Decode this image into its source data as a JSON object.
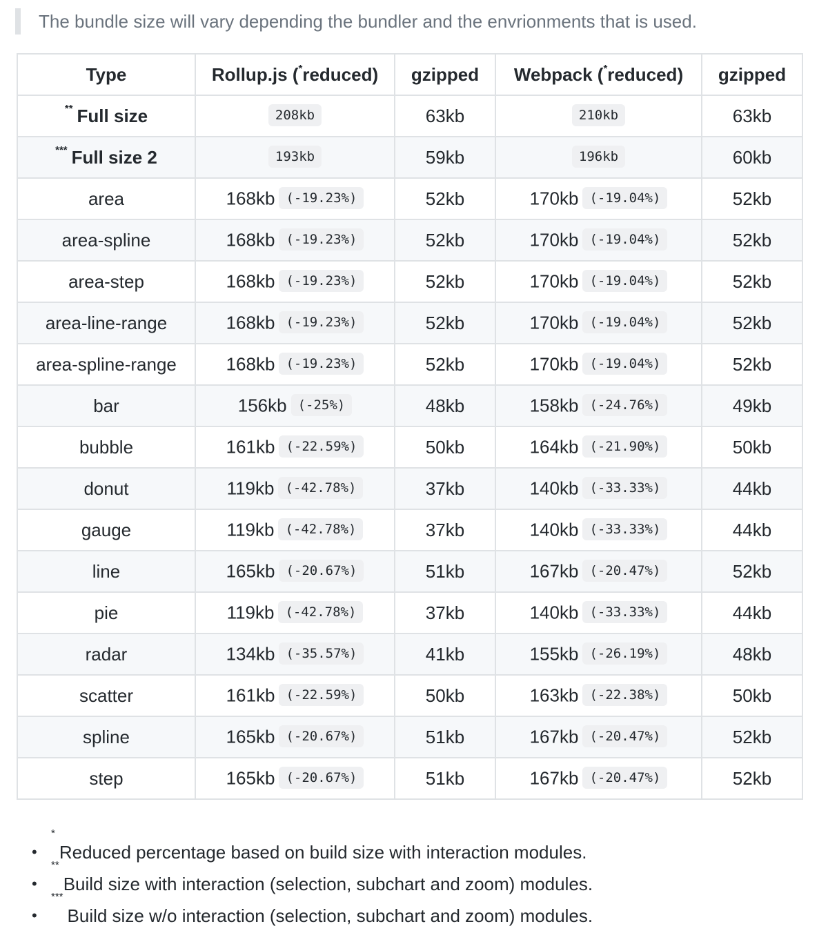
{
  "intro": "The bundle size will vary depending the bundler and the envrionments that is used.",
  "table": {
    "headers": {
      "type": "Type",
      "rollup_pre": "Rollup.js (",
      "rollup_mark": "*",
      "rollup_post": "reduced)",
      "gzip1": "gzipped",
      "webpack_pre": "Webpack (",
      "webpack_mark": "*",
      "webpack_post": "reduced)",
      "gzip2": "gzipped"
    },
    "rows": [
      {
        "mark": "**",
        "type": "Full size",
        "rollup": "",
        "rollup_code": "208kb",
        "gz1": "63kb",
        "webpack": "",
        "webpack_code": "210kb",
        "gz2": "63kb",
        "bold": true
      },
      {
        "mark": "***",
        "type": "Full size 2",
        "rollup": "",
        "rollup_code": "193kb",
        "gz1": "59kb",
        "webpack": "",
        "webpack_code": "196kb",
        "gz2": "60kb",
        "bold": true
      },
      {
        "mark": "",
        "type": "area",
        "rollup": "168kb",
        "rollup_code": "(-19.23%)",
        "gz1": "52kb",
        "webpack": "170kb",
        "webpack_code": "(-19.04%)",
        "gz2": "52kb"
      },
      {
        "mark": "",
        "type": "area-spline",
        "rollup": "168kb",
        "rollup_code": "(-19.23%)",
        "gz1": "52kb",
        "webpack": "170kb",
        "webpack_code": "(-19.04%)",
        "gz2": "52kb"
      },
      {
        "mark": "",
        "type": "area-step",
        "rollup": "168kb",
        "rollup_code": "(-19.23%)",
        "gz1": "52kb",
        "webpack": "170kb",
        "webpack_code": "(-19.04%)",
        "gz2": "52kb"
      },
      {
        "mark": "",
        "type": "area-line-range",
        "rollup": "168kb",
        "rollup_code": "(-19.23%)",
        "gz1": "52kb",
        "webpack": "170kb",
        "webpack_code": "(-19.04%)",
        "gz2": "52kb"
      },
      {
        "mark": "",
        "type": "area-spline-range",
        "rollup": "168kb",
        "rollup_code": "(-19.23%)",
        "gz1": "52kb",
        "webpack": "170kb",
        "webpack_code": "(-19.04%)",
        "gz2": "52kb"
      },
      {
        "mark": "",
        "type": "bar",
        "rollup": "156kb",
        "rollup_code": "(-25%)",
        "gz1": "48kb",
        "webpack": "158kb",
        "webpack_code": "(-24.76%)",
        "gz2": "49kb"
      },
      {
        "mark": "",
        "type": "bubble",
        "rollup": "161kb",
        "rollup_code": "(-22.59%)",
        "gz1": "50kb",
        "webpack": "164kb",
        "webpack_code": "(-21.90%)",
        "gz2": "50kb"
      },
      {
        "mark": "",
        "type": "donut",
        "rollup": "119kb",
        "rollup_code": "(-42.78%)",
        "gz1": "37kb",
        "webpack": "140kb",
        "webpack_code": "(-33.33%)",
        "gz2": "44kb"
      },
      {
        "mark": "",
        "type": "gauge",
        "rollup": "119kb",
        "rollup_code": "(-42.78%)",
        "gz1": "37kb",
        "webpack": "140kb",
        "webpack_code": "(-33.33%)",
        "gz2": "44kb"
      },
      {
        "mark": "",
        "type": "line",
        "rollup": "165kb",
        "rollup_code": "(-20.67%)",
        "gz1": "51kb",
        "webpack": "167kb",
        "webpack_code": "(-20.47%)",
        "gz2": "52kb"
      },
      {
        "mark": "",
        "type": "pie",
        "rollup": "119kb",
        "rollup_code": "(-42.78%)",
        "gz1": "37kb",
        "webpack": "140kb",
        "webpack_code": "(-33.33%)",
        "gz2": "44kb"
      },
      {
        "mark": "",
        "type": "radar",
        "rollup": "134kb",
        "rollup_code": "(-35.57%)",
        "gz1": "41kb",
        "webpack": "155kb",
        "webpack_code": "(-26.19%)",
        "gz2": "48kb"
      },
      {
        "mark": "",
        "type": "scatter",
        "rollup": "161kb",
        "rollup_code": "(-22.59%)",
        "gz1": "50kb",
        "webpack": "163kb",
        "webpack_code": "(-22.38%)",
        "gz2": "50kb"
      },
      {
        "mark": "",
        "type": "spline",
        "rollup": "165kb",
        "rollup_code": "(-20.67%)",
        "gz1": "51kb",
        "webpack": "167kb",
        "webpack_code": "(-20.47%)",
        "gz2": "52kb"
      },
      {
        "mark": "",
        "type": "step",
        "rollup": "165kb",
        "rollup_code": "(-20.67%)",
        "gz1": "51kb",
        "webpack": "167kb",
        "webpack_code": "(-20.47%)",
        "gz2": "52kb"
      }
    ]
  },
  "notes": [
    {
      "mark": "*",
      "text": "Reduced percentage based on build size with interaction modules."
    },
    {
      "mark": "**",
      "text": "Build size with interaction (selection, subchart and zoom) modules."
    },
    {
      "mark": "***",
      "text": "Build size w/o interaction (selection, subchart and zoom) modules."
    }
  ]
}
